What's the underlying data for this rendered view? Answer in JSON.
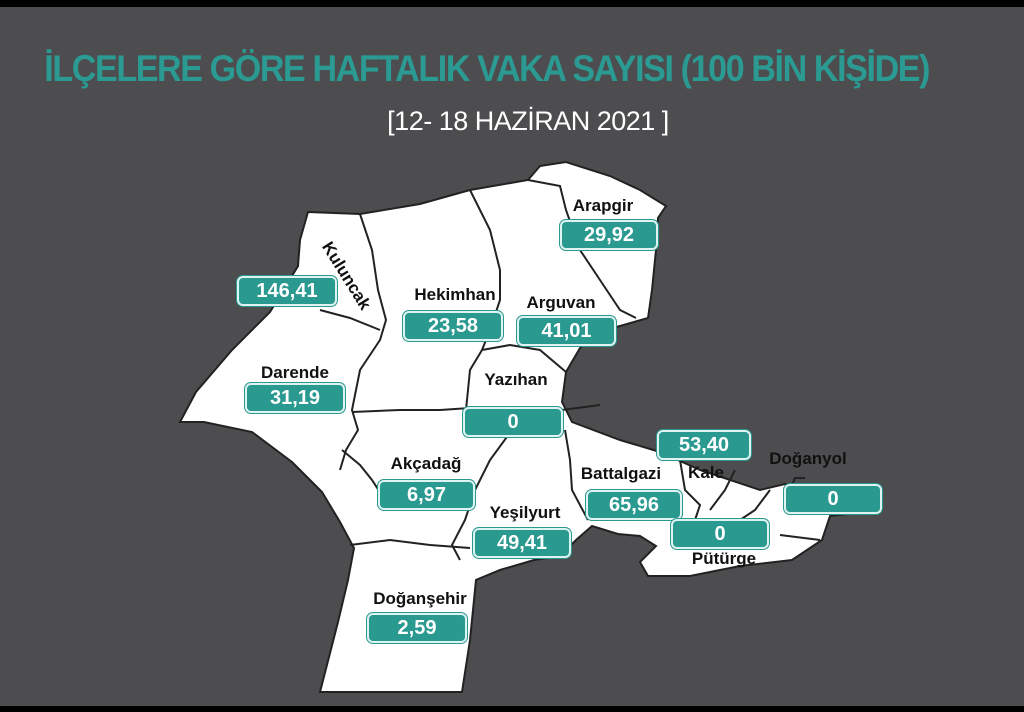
{
  "title": "İLÇELERE GÖRE HAFTALIK VAKA SAYISI (100 BİN KİŞİDE)",
  "subtitle": "[12- 18 HAZİRAN 2021 ]",
  "colors": {
    "accent": "#2a9990",
    "background": "#4d4d4f",
    "map_fill": "#ffffff"
  },
  "districts": [
    {
      "name": "Arapgir",
      "value": "29,92"
    },
    {
      "name": "Kuluncak",
      "value": "146,41"
    },
    {
      "name": "Hekimhan",
      "value": "23,58"
    },
    {
      "name": "Arguvan",
      "value": "41,01"
    },
    {
      "name": "Darende",
      "value": "31,19"
    },
    {
      "name": "Yazıhan",
      "value": "0"
    },
    {
      "name": "Akçadağ",
      "value": "6,97"
    },
    {
      "name": "Battalgazi",
      "value": "65,96"
    },
    {
      "name": "Kale",
      "value": "53,40"
    },
    {
      "name": "Doğanyol",
      "value": "0"
    },
    {
      "name": "Yeşilyurt",
      "value": "49,41"
    },
    {
      "name": "Pütürge",
      "value": "0"
    },
    {
      "name": "Doğanşehir",
      "value": "2,59"
    }
  ]
}
